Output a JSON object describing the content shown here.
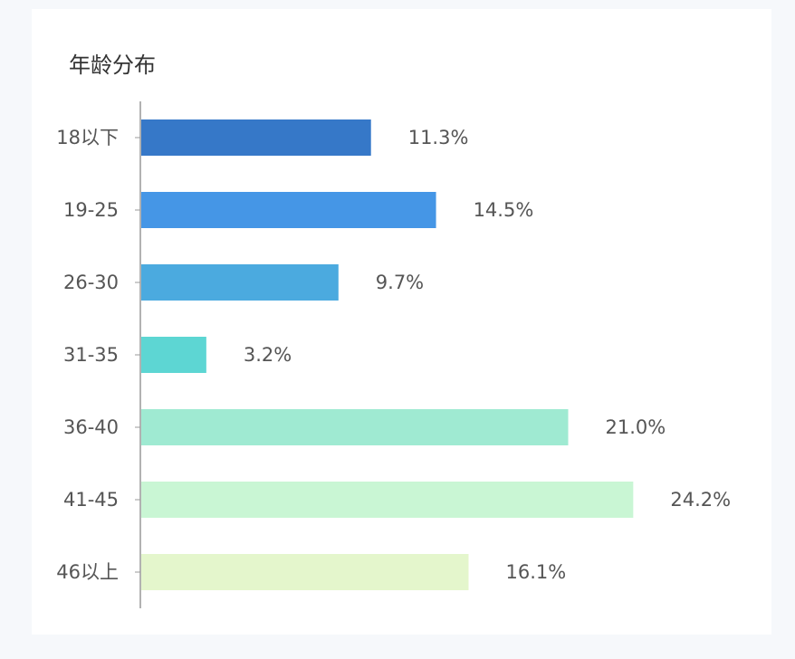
{
  "chart_data": {
    "type": "bar",
    "orientation": "horizontal",
    "title": "年龄分布",
    "xlabel": "",
    "ylabel": "",
    "categories": [
      "18以下",
      "19-25",
      "26-30",
      "31-35",
      "36-40",
      "41-45",
      "46以上"
    ],
    "values": [
      11.3,
      14.5,
      9.7,
      3.2,
      21.0,
      24.2,
      16.1
    ],
    "value_labels": [
      "11.3%",
      "14.5%",
      "9.7%",
      "3.2%",
      "21.0%",
      "24.2%",
      "16.1%"
    ],
    "unit": "%",
    "xlim": [
      0,
      26.5
    ],
    "grid": false,
    "legend": "none",
    "colors": [
      "#3678c8",
      "#4596e6",
      "#4baadf",
      "#5dd6d3",
      "#9fead2",
      "#c9f6d4",
      "#e4f6cc"
    ]
  }
}
